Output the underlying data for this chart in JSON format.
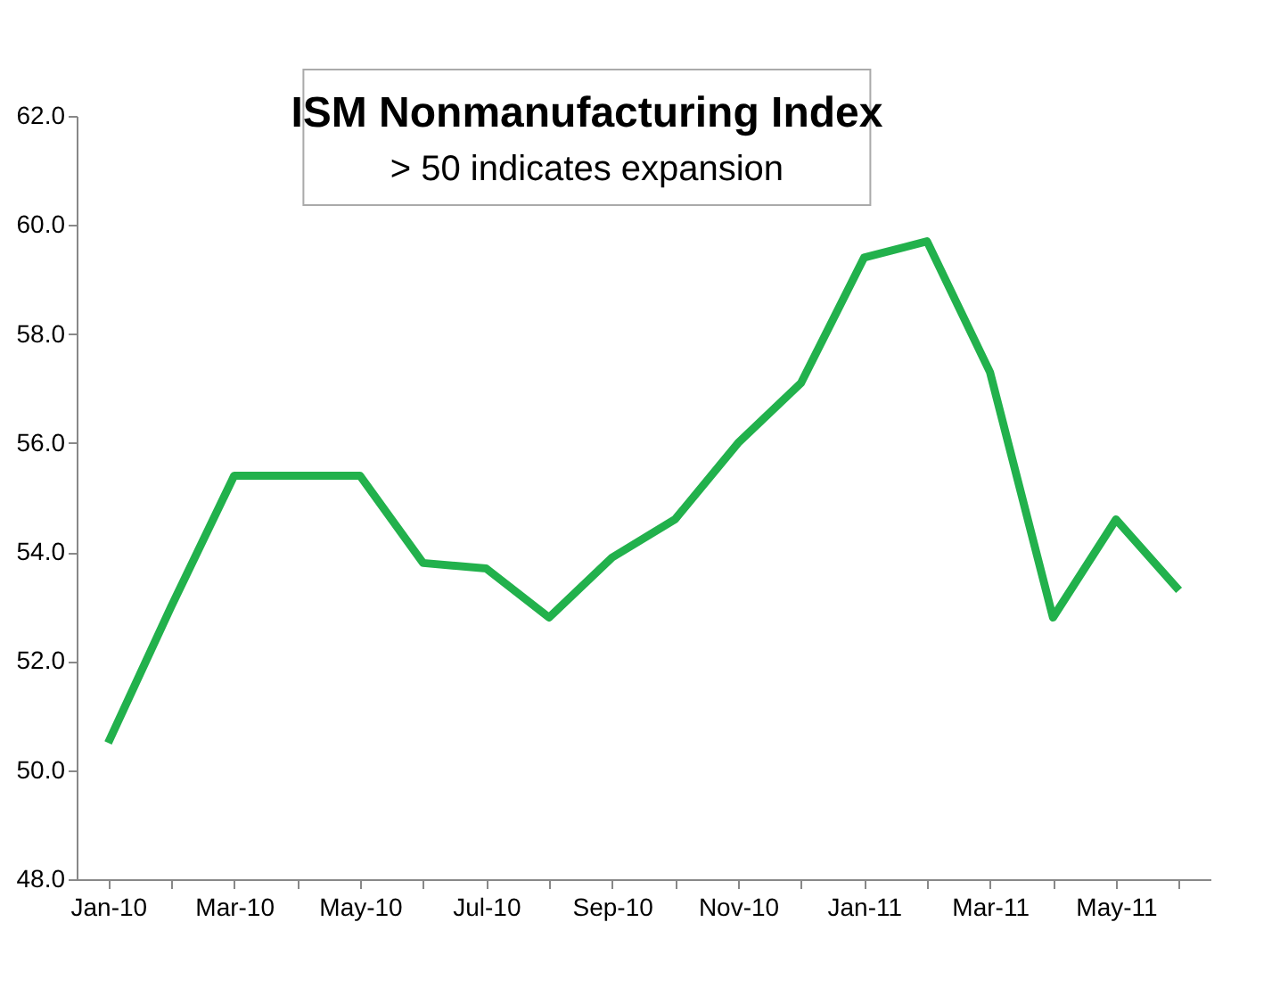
{
  "chart_data": {
    "type": "line",
    "title": "ISM Nonmanufacturing Index",
    "subtitle": "> 50 indicates expansion",
    "categories": [
      "Jan-10",
      null,
      "Mar-10",
      null,
      "May-10",
      null,
      "Jul-10",
      null,
      "Sep-10",
      null,
      "Nov-10",
      null,
      "Jan-11",
      null,
      "Mar-11",
      null,
      "May-11",
      null
    ],
    "series": [
      {
        "color": "#22b14c",
        "values": [
          50.5,
          53.0,
          55.4,
          55.4,
          55.4,
          53.8,
          53.7,
          52.8,
          53.9,
          54.6,
          56.0,
          57.1,
          59.4,
          59.7,
          57.3,
          52.8,
          54.6,
          53.3
        ]
      }
    ],
    "ylim": [
      48,
      62
    ],
    "yticks": [
      {
        "value": 48,
        "label": "48.0"
      },
      {
        "value": 50,
        "label": "50.0"
      },
      {
        "value": 52,
        "label": "52.0"
      },
      {
        "value": 54,
        "label": "54.0"
      },
      {
        "value": 56,
        "label": "56.0"
      },
      {
        "value": 58,
        "label": "58.0"
      },
      {
        "value": 60,
        "label": "60.0"
      },
      {
        "value": 62,
        "label": "62.0"
      }
    ],
    "grid": false,
    "marker": "none",
    "line_style": "solid"
  }
}
